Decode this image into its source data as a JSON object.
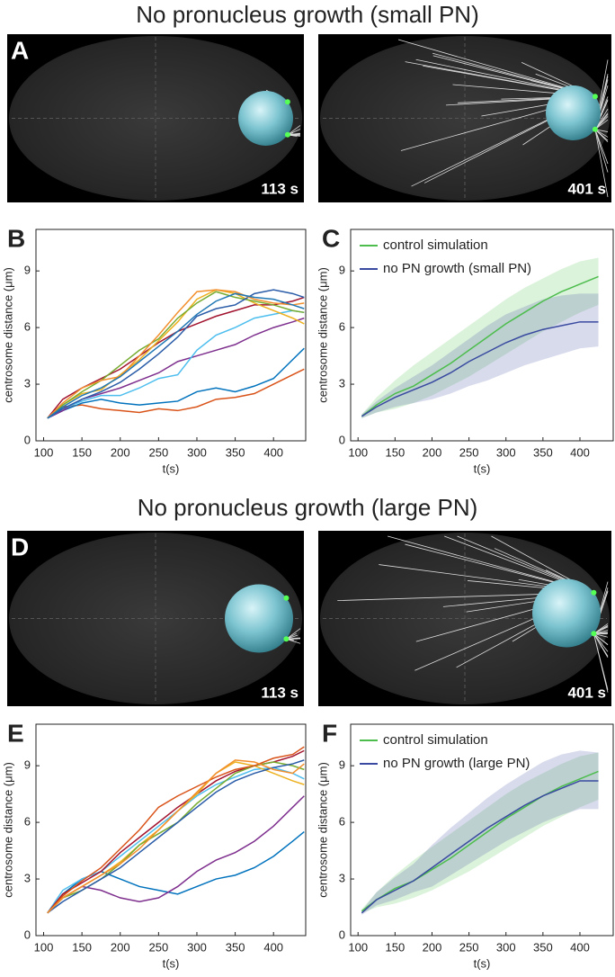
{
  "titles": [
    "No pronucleus growth (small PN)",
    "No pronucleus growth (large PN)"
  ],
  "images": [
    {
      "label": "A",
      "time": "113 s"
    },
    {
      "time": "401 s"
    },
    {
      "label": "D",
      "time": "113 s"
    },
    {
      "time": "401 s"
    }
  ],
  "chart_data": [
    {
      "type": "line",
      "panel": "B",
      "xlabel": "t(s)",
      "ylabel": "centrosome distance (μm)",
      "x": [
        105,
        125,
        150,
        175,
        200,
        225,
        250,
        275,
        300,
        325,
        350,
        375,
        400,
        425,
        440
      ],
      "xlim": [
        90,
        442
      ],
      "xticks": [
        100,
        150,
        200,
        250,
        300,
        350,
        400
      ],
      "ylim": [
        0,
        11.2
      ],
      "yticks": [
        0,
        3,
        6,
        9
      ],
      "series": [
        {
          "color": "#d95319",
          "values": [
            1.2,
            1.8,
            1.9,
            1.7,
            1.6,
            1.5,
            1.7,
            1.6,
            1.8,
            2.2,
            2.3,
            2.5,
            3.0,
            3.5,
            3.8
          ]
        },
        {
          "color": "#0072bd",
          "values": [
            1.2,
            1.6,
            2.0,
            2.2,
            2.0,
            1.9,
            2.0,
            2.1,
            2.6,
            2.8,
            2.6,
            2.9,
            3.3,
            4.3,
            4.9
          ]
        },
        {
          "color": "#7e2f8e",
          "values": [
            1.2,
            1.6,
            2.2,
            2.5,
            2.8,
            3.2,
            3.6,
            4.2,
            4.5,
            4.8,
            5.1,
            5.6,
            6.0,
            6.3,
            6.5
          ]
        },
        {
          "color": "#4dbeee",
          "values": [
            1.2,
            1.7,
            2.1,
            2.4,
            2.4,
            2.8,
            3.3,
            3.5,
            4.8,
            5.6,
            6.0,
            6.5,
            6.7,
            6.9,
            6.8
          ]
        },
        {
          "color": "#a2142f",
          "values": [
            1.2,
            2.2,
            2.8,
            3.3,
            3.8,
            4.5,
            5.2,
            5.8,
            6.2,
            6.6,
            6.9,
            7.2,
            7.2,
            7.4,
            7.6
          ]
        },
        {
          "color": "#edb120",
          "values": [
            1.2,
            1.9,
            2.5,
            2.7,
            3.5,
            4.3,
            5.3,
            6.3,
            7.5,
            8.0,
            7.8,
            7.3,
            6.9,
            6.5,
            6.2
          ]
        },
        {
          "color": "#77ac30",
          "values": [
            1.2,
            1.9,
            2.6,
            3.2,
            4.0,
            4.8,
            5.4,
            6.5,
            7.3,
            7.9,
            7.6,
            7.4,
            7.2,
            6.9,
            6.8
          ]
        },
        {
          "color": "#2a5ca8",
          "values": [
            1.2,
            1.7,
            2.2,
            2.6,
            3.1,
            3.8,
            4.6,
            5.5,
            6.6,
            7.0,
            7.2,
            7.8,
            8.0,
            7.8,
            7.6
          ]
        },
        {
          "color": "#f28e2b",
          "values": [
            1.2,
            2.0,
            2.8,
            3.2,
            3.4,
            4.5,
            5.6,
            6.8,
            7.9,
            8.0,
            7.9,
            7.5,
            7.3,
            7.2,
            7.3
          ]
        },
        {
          "color": "#1f77b4",
          "values": [
            1.2,
            1.8,
            2.4,
            2.8,
            3.4,
            4.2,
            5.0,
            5.8,
            6.7,
            7.4,
            7.8,
            7.6,
            7.5,
            7.2,
            7.0
          ]
        }
      ]
    },
    {
      "type": "band",
      "panel": "C",
      "xlabel": "t(s)",
      "ylabel": "centrosome distance (μm)",
      "x": [
        105,
        125,
        150,
        175,
        200,
        225,
        250,
        275,
        300,
        325,
        350,
        375,
        400,
        425
      ],
      "xlim": [
        90,
        445
      ],
      "xticks": [
        100,
        150,
        200,
        250,
        300,
        350,
        400
      ],
      "ylim": [
        0,
        11.2
      ],
      "yticks": [
        0,
        3,
        6,
        9
      ],
      "series": [
        {
          "name": "control simulation",
          "color": "#4dbd4d",
          "values": [
            1.3,
            1.9,
            2.5,
            2.9,
            3.5,
            4.1,
            4.8,
            5.5,
            6.2,
            6.8,
            7.4,
            7.9,
            8.3,
            8.7
          ],
          "lower": [
            1.2,
            1.5,
            1.7,
            2.0,
            2.4,
            2.9,
            3.4,
            4.0,
            4.6,
            5.2,
            5.8,
            6.3,
            6.8,
            7.2
          ],
          "upper": [
            1.4,
            2.3,
            3.2,
            4.0,
            4.7,
            5.4,
            6.1,
            6.8,
            7.5,
            8.1,
            8.6,
            9.1,
            9.5,
            9.7
          ]
        },
        {
          "name": "no PN growth (small PN)",
          "color": "#3a4aa0",
          "values": [
            1.3,
            1.8,
            2.3,
            2.7,
            3.1,
            3.6,
            4.2,
            4.7,
            5.2,
            5.6,
            5.9,
            6.1,
            6.3,
            6.3
          ],
          "lower": [
            1.2,
            1.5,
            1.8,
            2.0,
            2.2,
            2.5,
            2.9,
            3.2,
            3.6,
            4.0,
            4.3,
            4.6,
            4.9,
            5.0
          ],
          "upper": [
            1.4,
            2.1,
            2.8,
            3.4,
            4.0,
            4.7,
            5.4,
            6.1,
            6.7,
            7.1,
            7.5,
            7.7,
            7.8,
            7.8
          ]
        }
      ]
    },
    {
      "type": "line",
      "panel": "E",
      "xlabel": "t(s)",
      "ylabel": "centrosome distance (μm)",
      "x": [
        105,
        125,
        150,
        175,
        200,
        225,
        250,
        275,
        300,
        325,
        350,
        375,
        400,
        425,
        440
      ],
      "xlim": [
        90,
        442
      ],
      "xticks": [
        100,
        150,
        200,
        250,
        300,
        350,
        400
      ],
      "ylim": [
        0,
        11.2
      ],
      "yticks": [
        0,
        3,
        6,
        9
      ],
      "series": [
        {
          "color": "#0072bd",
          "values": [
            1.2,
            2.2,
            3.0,
            3.4,
            3.0,
            2.6,
            2.4,
            2.2,
            2.6,
            3.0,
            3.2,
            3.6,
            4.2,
            5.0,
            5.5
          ]
        },
        {
          "color": "#7e2f8e",
          "values": [
            1.2,
            2.0,
            2.6,
            2.4,
            2.0,
            1.8,
            2.0,
            2.6,
            3.4,
            4.0,
            4.4,
            5.0,
            5.8,
            6.8,
            7.4
          ]
        },
        {
          "color": "#4dbeee",
          "values": [
            1.2,
            2.4,
            3.0,
            3.4,
            4.2,
            5.0,
            5.8,
            6.6,
            7.4,
            8.0,
            8.4,
            8.8,
            8.9,
            8.6,
            8.3
          ]
        },
        {
          "color": "#a2142f",
          "values": [
            1.2,
            2.2,
            2.8,
            3.4,
            4.4,
            5.2,
            6.0,
            6.8,
            7.5,
            8.2,
            8.7,
            9.0,
            9.2,
            9.5,
            9.8
          ]
        },
        {
          "color": "#edb120",
          "values": [
            1.2,
            2.0,
            2.6,
            3.2,
            3.9,
            4.8,
            5.6,
            6.6,
            7.5,
            8.6,
            9.2,
            9.0,
            8.6,
            8.2,
            8.0
          ]
        },
        {
          "color": "#77ac30",
          "values": [
            1.2,
            2.0,
            2.4,
            3.0,
            3.8,
            4.8,
            5.4,
            6.0,
            7.0,
            7.8,
            8.6,
            9.0,
            9.2,
            9.0,
            8.8
          ]
        },
        {
          "color": "#d95319",
          "values": [
            1.2,
            2.1,
            2.9,
            3.6,
            4.6,
            5.6,
            6.8,
            7.4,
            7.9,
            8.4,
            8.8,
            9.0,
            9.4,
            9.6,
            10.0
          ]
        },
        {
          "color": "#2a5ca8",
          "values": [
            1.2,
            1.8,
            2.4,
            3.0,
            3.6,
            4.4,
            5.2,
            6.0,
            6.8,
            7.6,
            8.2,
            8.6,
            8.9,
            9.1,
            9.3
          ]
        },
        {
          "color": "#f28e2b",
          "values": [
            1.2,
            2.0,
            2.6,
            3.2,
            3.8,
            4.6,
            5.6,
            6.6,
            7.6,
            8.6,
            9.3,
            9.2,
            8.8,
            8.6,
            9.1
          ]
        }
      ]
    },
    {
      "type": "band",
      "panel": "F",
      "xlabel": "t(s)",
      "ylabel": "centrosome distance (μm)",
      "x": [
        105,
        125,
        150,
        175,
        200,
        225,
        250,
        275,
        300,
        325,
        350,
        375,
        400,
        425
      ],
      "xlim": [
        90,
        445
      ],
      "xticks": [
        100,
        150,
        200,
        250,
        300,
        350,
        400
      ],
      "ylim": [
        0,
        11.2
      ],
      "yticks": [
        0,
        3,
        6,
        9
      ],
      "series": [
        {
          "name": "control simulation",
          "color": "#4dbd4d",
          "values": [
            1.3,
            1.9,
            2.5,
            2.9,
            3.5,
            4.1,
            4.8,
            5.5,
            6.2,
            6.8,
            7.4,
            7.9,
            8.3,
            8.7
          ],
          "lower": [
            1.2,
            1.5,
            1.7,
            2.0,
            2.4,
            2.9,
            3.4,
            4.0,
            4.6,
            5.2,
            5.8,
            6.3,
            6.8,
            7.2
          ],
          "upper": [
            1.4,
            2.3,
            3.2,
            4.0,
            4.7,
            5.4,
            6.1,
            6.8,
            7.5,
            8.1,
            8.6,
            9.1,
            9.5,
            9.7
          ]
        },
        {
          "name": "no PN growth (large PN)",
          "color": "#3a4aa0",
          "values": [
            1.2,
            1.9,
            2.4,
            2.9,
            3.6,
            4.3,
            5.0,
            5.7,
            6.3,
            6.9,
            7.4,
            7.8,
            8.2,
            8.2
          ],
          "lower": [
            1.1,
            1.6,
            1.9,
            2.3,
            2.6,
            3.2,
            3.8,
            4.4,
            5.0,
            5.5,
            6.0,
            6.4,
            6.7,
            6.7
          ],
          "upper": [
            1.3,
            2.3,
            3.1,
            3.8,
            4.8,
            5.7,
            6.5,
            7.3,
            8.0,
            8.6,
            9.2,
            9.6,
            9.8,
            9.7
          ]
        }
      ]
    }
  ]
}
